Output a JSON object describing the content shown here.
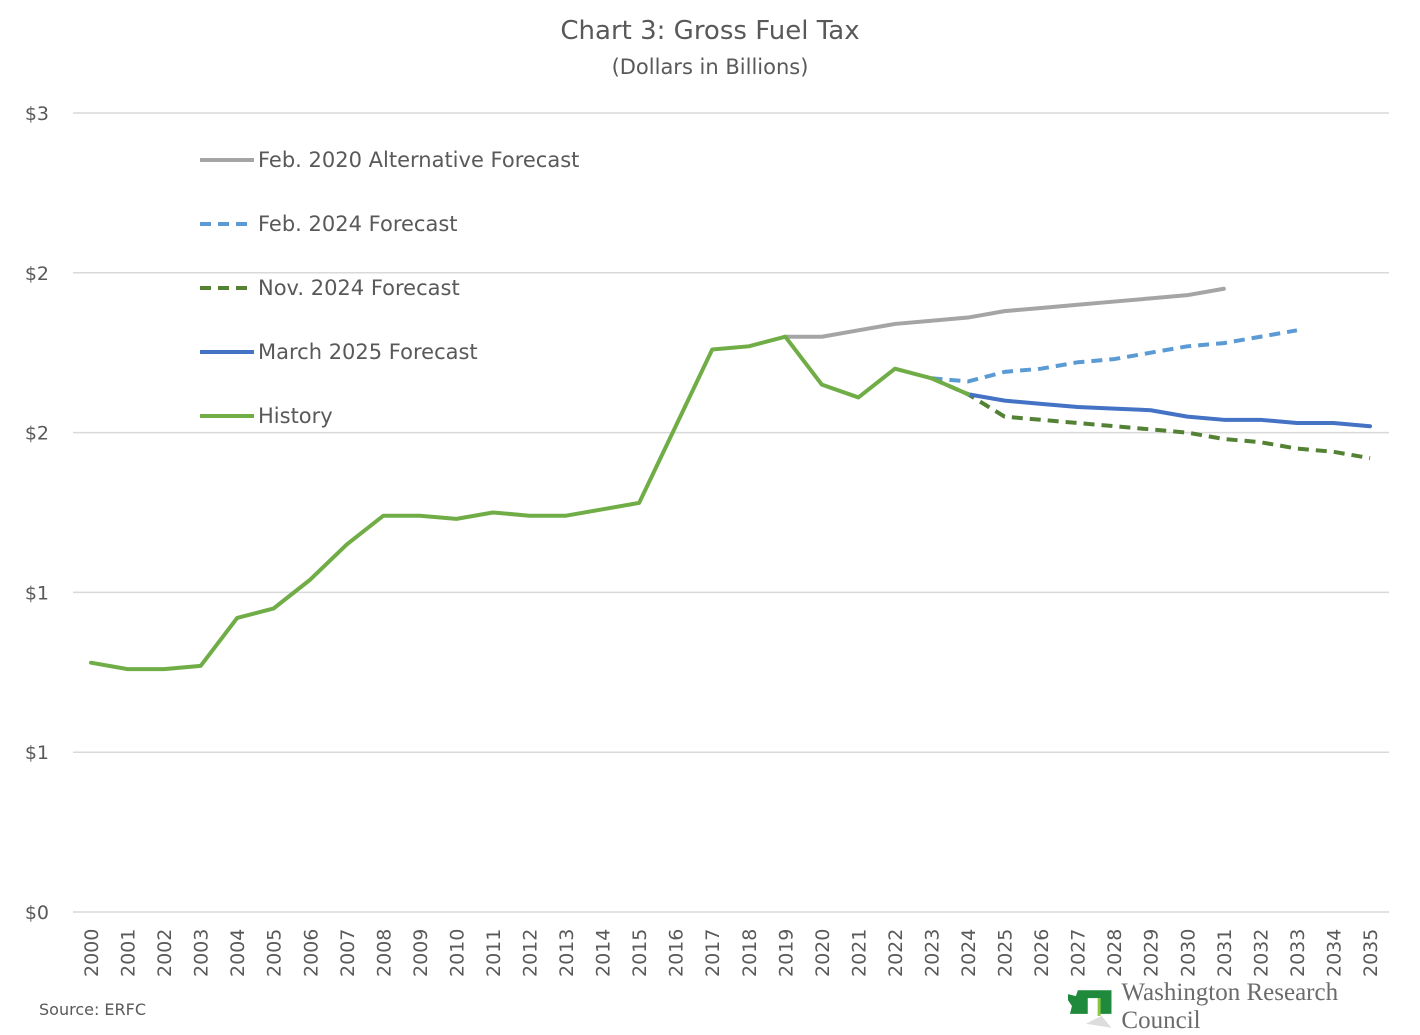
{
  "chart_data": {
    "type": "line",
    "title": "Chart 3: Gross Fuel Tax",
    "subtitle": "(Dollars in Billions)",
    "xlabel": "",
    "ylabel": "",
    "ylim": [
      0,
      2.5
    ],
    "yticks": [
      0,
      0.5,
      1,
      1.5,
      2,
      2.5
    ],
    "ytick_labels": [
      "$0",
      "$1",
      "$1",
      "$2",
      "$2",
      "$3"
    ],
    "x": [
      2000,
      2001,
      2002,
      2003,
      2004,
      2005,
      2006,
      2007,
      2008,
      2009,
      2010,
      2011,
      2012,
      2013,
      2014,
      2015,
      2016,
      2017,
      2018,
      2019,
      2020,
      2021,
      2022,
      2023,
      2024,
      2025,
      2026,
      2027,
      2028,
      2029,
      2030,
      2031,
      2032,
      2033,
      2034,
      2035
    ],
    "grid": true,
    "legend_position": "top-left",
    "series": [
      {
        "name": "Feb. 2020 Alternative Forecast",
        "color": "#a5a5a5",
        "dash": false,
        "x": [
          2019,
          2020,
          2021,
          2022,
          2023,
          2024,
          2025,
          2026,
          2027,
          2028,
          2029,
          2030,
          2031
        ],
        "values": [
          1.8,
          1.8,
          1.82,
          1.84,
          1.85,
          1.86,
          1.88,
          1.89,
          1.9,
          1.91,
          1.92,
          1.93,
          1.95
        ]
      },
      {
        "name": "Feb. 2024 Forecast",
        "color": "#5b9bd5",
        "dash": true,
        "x": [
          2023,
          2024,
          2025,
          2026,
          2027,
          2028,
          2029,
          2030,
          2031,
          2032,
          2033
        ],
        "values": [
          1.67,
          1.66,
          1.69,
          1.7,
          1.72,
          1.73,
          1.75,
          1.77,
          1.78,
          1.8,
          1.82
        ]
      },
      {
        "name": "Nov. 2024 Forecast",
        "color": "#548235",
        "dash": true,
        "x": [
          2023,
          2024,
          2025,
          2026,
          2027,
          2028,
          2029,
          2030,
          2031,
          2032,
          2033,
          2034,
          2035
        ],
        "values": [
          1.67,
          1.62,
          1.55,
          1.54,
          1.53,
          1.52,
          1.51,
          1.5,
          1.48,
          1.47,
          1.45,
          1.44,
          1.42
        ]
      },
      {
        "name": "March 2025 Forecast",
        "color": "#4472c4",
        "dash": false,
        "x": [
          2024,
          2025,
          2026,
          2027,
          2028,
          2029,
          2030,
          2031,
          2032,
          2033,
          2034,
          2035
        ],
        "values": [
          1.62,
          1.6,
          1.59,
          1.58,
          1.575,
          1.57,
          1.55,
          1.54,
          1.54,
          1.53,
          1.53,
          1.52
        ]
      },
      {
        "name": "History",
        "color": "#70ad47",
        "dash": false,
        "x": [
          2000,
          2001,
          2002,
          2003,
          2004,
          2005,
          2006,
          2007,
          2008,
          2009,
          2010,
          2011,
          2012,
          2013,
          2014,
          2015,
          2016,
          2017,
          2018,
          2019,
          2020,
          2021,
          2022,
          2023,
          2024
        ],
        "values": [
          0.78,
          0.76,
          0.76,
          0.77,
          0.92,
          0.95,
          1.04,
          1.15,
          1.24,
          1.24,
          1.23,
          1.25,
          1.24,
          1.24,
          1.26,
          1.28,
          1.52,
          1.76,
          1.77,
          1.8,
          1.65,
          1.61,
          1.7,
          1.67,
          1.62
        ]
      }
    ]
  },
  "footer": {
    "source": "Source: ERFC",
    "logo_text": "Washington Research Council"
  }
}
